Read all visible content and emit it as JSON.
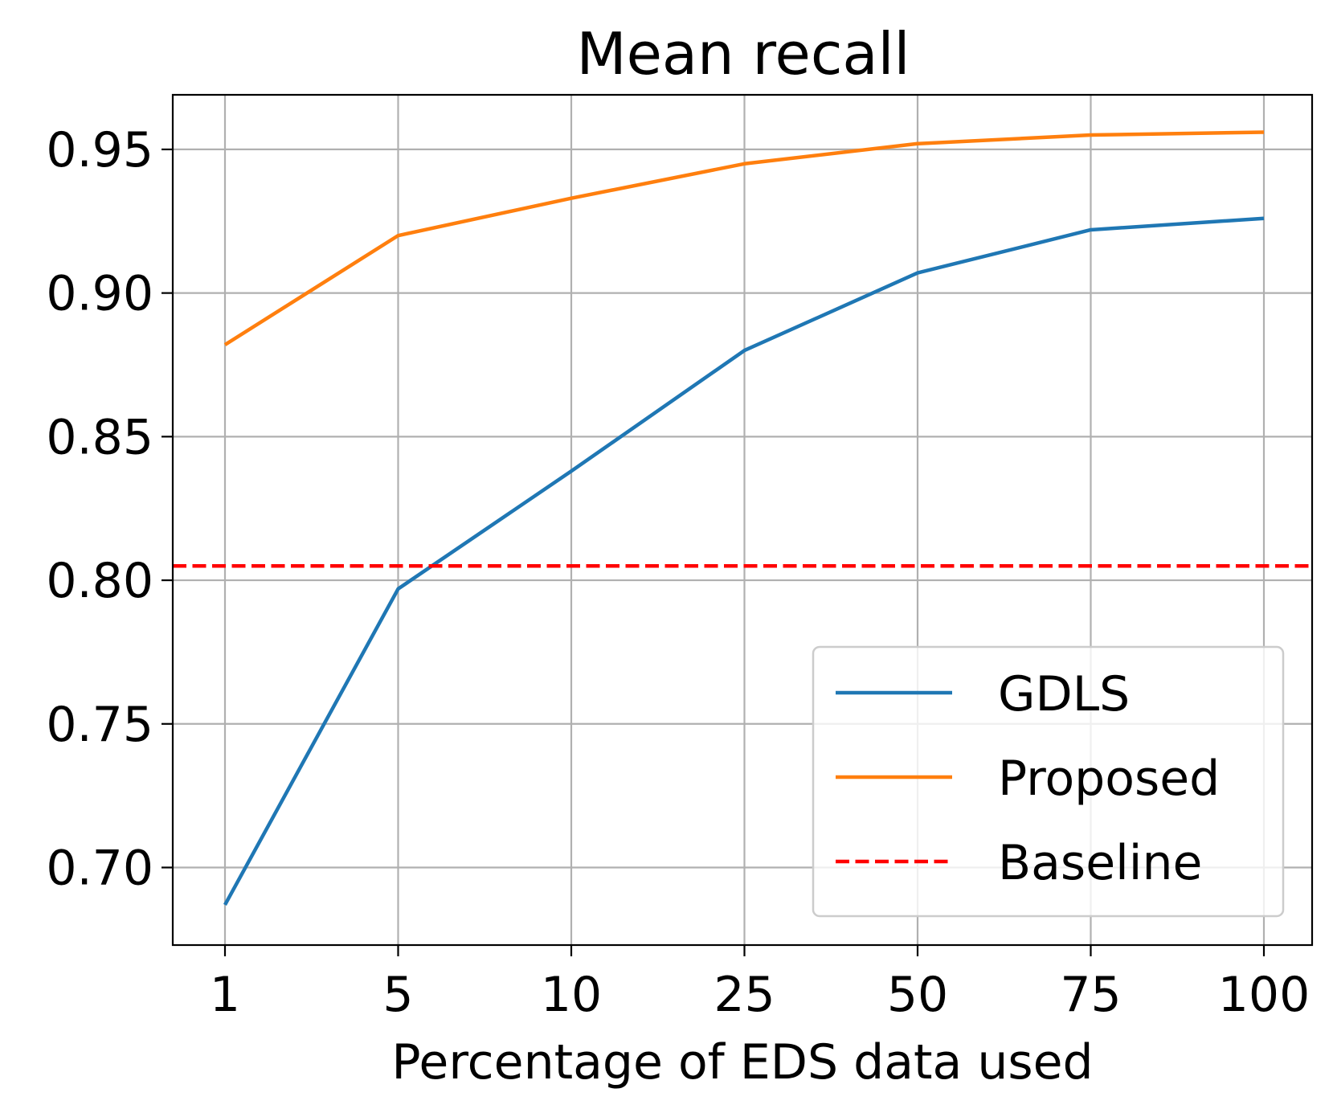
{
  "chart_data": {
    "type": "line",
    "title": "Mean recall",
    "xlabel": "Percentage of EDS data used",
    "ylabel": "",
    "categories": [
      "1",
      "5",
      "10",
      "25",
      "50",
      "75",
      "100"
    ],
    "yticks": [
      "0.70",
      "0.75",
      "0.80",
      "0.85",
      "0.90",
      "0.95"
    ],
    "ytick_values": [
      0.7,
      0.75,
      0.8,
      0.85,
      0.9,
      0.95
    ],
    "ylim": [
      0.673,
      0.969
    ],
    "grid": true,
    "legend_position": "bottom-right",
    "series": [
      {
        "name": "GDLS",
        "color": "#1f77b4",
        "style": "solid",
        "values": [
          0.687,
          0.797,
          0.838,
          0.88,
          0.907,
          0.922,
          0.926
        ]
      },
      {
        "name": "Proposed",
        "color": "#ff7f0e",
        "style": "solid",
        "values": [
          0.882,
          0.92,
          0.933,
          0.945,
          0.952,
          0.955,
          0.956
        ]
      },
      {
        "name": "Baseline",
        "color": "#ff0000",
        "style": "dashed",
        "constant": 0.805
      }
    ]
  }
}
